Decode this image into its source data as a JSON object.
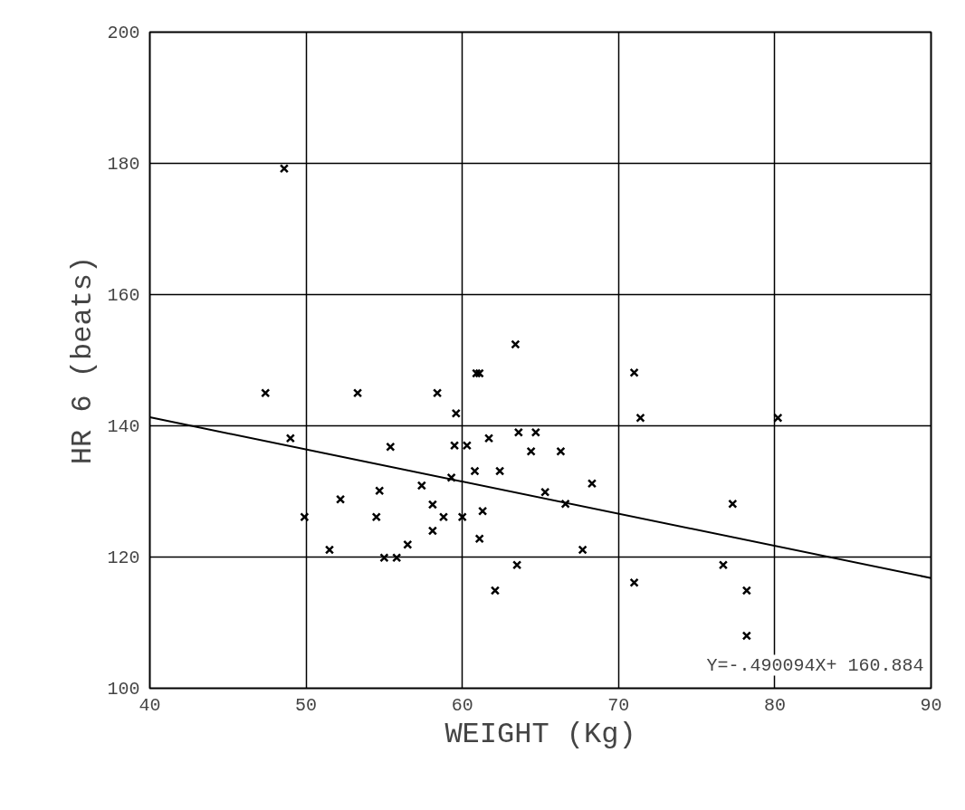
{
  "chart_data": {
    "type": "scatter",
    "xlabel": "WEIGHT (Kg)",
    "ylabel": "HR 6 (beats)",
    "xlim": [
      40,
      90
    ],
    "ylim": [
      100,
      200
    ],
    "xticks": [
      40,
      50,
      60,
      70,
      80,
      90
    ],
    "yticks": [
      100,
      120,
      140,
      160,
      180,
      200
    ],
    "grid": true,
    "marker": "cross",
    "annotations": [
      "Y=-.490094X+ 160.884"
    ],
    "series": [
      {
        "type": "scatter",
        "color": "#000000",
        "x": [
          48.6,
          47.4,
          49.0,
          49.9,
          51.5,
          52.2,
          53.3,
          54.7,
          54.5,
          55.0,
          55.8,
          55.4,
          56.5,
          57.4,
          58.1,
          58.1,
          58.4,
          58.8,
          59.3,
          59.5,
          59.6,
          60.0,
          60.3,
          60.9,
          61.1,
          60.8,
          61.1,
          61.3,
          61.7,
          62.1,
          62.4,
          63.4,
          63.5,
          63.6,
          64.4,
          64.7,
          65.3,
          66.3,
          66.6,
          67.7,
          68.3,
          71.0,
          71.0,
          71.4,
          76.7,
          77.3,
          78.2,
          78.2,
          80.2
        ],
        "values": [
          179.2,
          145.0,
          138.1,
          126.1,
          121.1,
          128.8,
          145.0,
          130.1,
          126.1,
          119.9,
          119.9,
          136.8,
          121.9,
          130.9,
          128.0,
          124.0,
          145.0,
          126.1,
          132.1,
          137.0,
          141.9,
          126.1,
          137.0,
          148.0,
          148.0,
          133.1,
          122.8,
          127.0,
          138.1,
          114.9,
          133.1,
          152.4,
          118.8,
          139.0,
          136.1,
          139.0,
          129.9,
          136.1,
          128.1,
          121.1,
          131.2,
          148.1,
          116.1,
          141.2,
          118.8,
          128.1,
          114.9,
          108.0,
          141.2
        ]
      },
      {
        "type": "line",
        "color": "#000000",
        "marker": "none",
        "x": [
          40,
          90
        ],
        "values": [
          141.3,
          116.8
        ]
      }
    ]
  }
}
